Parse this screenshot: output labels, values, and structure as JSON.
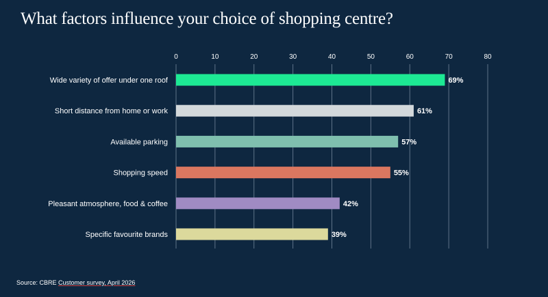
{
  "title": "What factors influence your choice of shopping centre?",
  "source": {
    "prefix": "Source: CBRE ",
    "link_text": "Customer survey, April 2026"
  },
  "chart_data": {
    "type": "bar",
    "orientation": "horizontal",
    "title": "What factors influence your choice of shopping centre?",
    "xlim": [
      0,
      80
    ],
    "xticks": [
      0,
      10,
      20,
      30,
      40,
      50,
      60,
      70,
      80
    ],
    "grid": true,
    "categories": [
      "Wide variety of offer under one roof",
      "Short distance from home or work",
      "Available parking",
      "Shopping speed",
      "Pleasant atmosphere, food & coffee",
      "Specific favourite brands"
    ],
    "values": [
      69,
      61,
      57,
      55,
      42,
      39
    ],
    "value_labels": [
      "69%",
      "61%",
      "57%",
      "55%",
      "42%",
      "39%"
    ],
    "colors": [
      "#1de994",
      "#d3d8db",
      "#7fbfae",
      "#da7760",
      "#a08bc3",
      "#dcd99c"
    ]
  }
}
